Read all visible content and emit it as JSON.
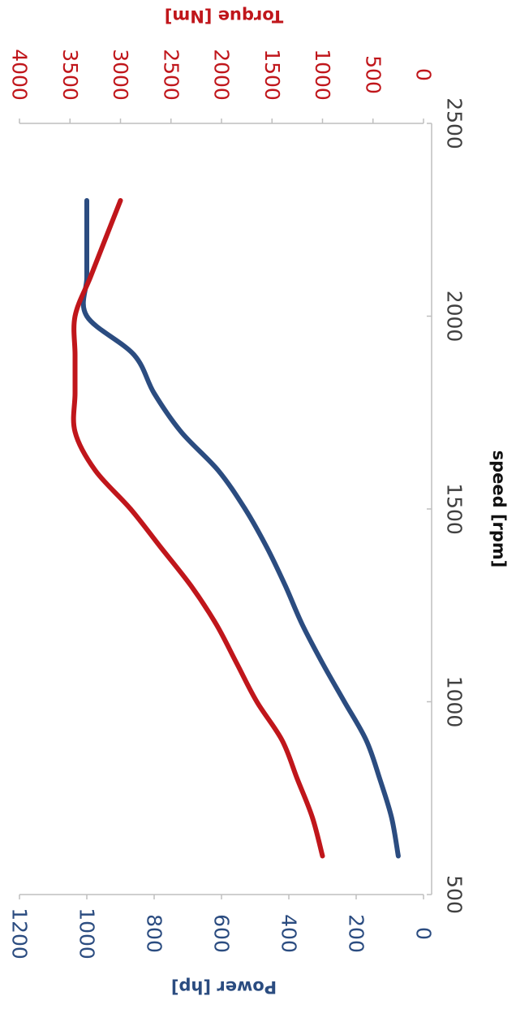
{
  "chart_data": {
    "type": "line",
    "orientation": "rotated 90° clockwise",
    "xlabel": "speed [rpm]",
    "xlim": [
      500,
      2500
    ],
    "xticks": [
      "500",
      "1000",
      "1500",
      "2000",
      "2500"
    ],
    "y_left": {
      "label": "Power [hp]",
      "lim": [
        0,
        1200
      ],
      "ticks": [
        "0",
        "200",
        "400",
        "600",
        "800",
        "1000",
        "1200"
      ],
      "color": "#2b4c80"
    },
    "y_right": {
      "label": "Torque [Nm]",
      "lim": [
        0,
        4000
      ],
      "ticks": [
        "0",
        "500",
        "1000",
        "1500",
        "2000",
        "2500",
        "3000",
        "3500",
        "4000"
      ],
      "color": "#c0161b"
    },
    "grid": false,
    "series": [
      {
        "axis": "left",
        "color": "#2b4c80",
        "x": [
          600,
          700,
          800,
          900,
          1000,
          1100,
          1200,
          1300,
          1400,
          1500,
          1600,
          1700,
          1800,
          1900,
          2000,
          2100,
          2200,
          2300
        ],
        "values": [
          75,
          95,
          130,
          170,
          235,
          300,
          360,
          410,
          465,
          530,
          610,
          720,
          800,
          860,
          1000,
          1000,
          1000,
          1000
        ]
      },
      {
        "axis": "right",
        "color": "#c0161b",
        "x": [
          600,
          700,
          800,
          900,
          1000,
          1100,
          1200,
          1300,
          1400,
          1500,
          1600,
          1700,
          1800,
          1900,
          2000,
          2100,
          2200,
          2300
        ],
        "values": [
          1000,
          1100,
          1250,
          1400,
          1650,
          1850,
          2050,
          2300,
          2600,
          2900,
          3250,
          3450,
          3450,
          3450,
          3450,
          3300,
          3150,
          3000
        ]
      }
    ]
  }
}
